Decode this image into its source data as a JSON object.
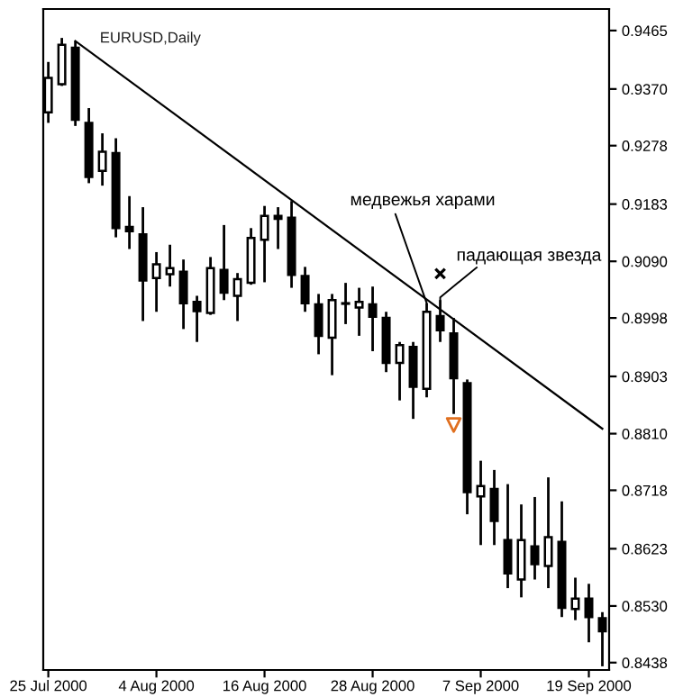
{
  "chart_data": {
    "type": "candlestick",
    "title": "EURUSD,Daily",
    "categories": [
      "25 Jul 2000",
      null,
      null,
      null,
      null,
      null,
      null,
      null,
      "4 Aug 2000",
      null,
      null,
      null,
      null,
      null,
      null,
      null,
      "16 Aug 2000",
      null,
      null,
      null,
      null,
      null,
      null,
      null,
      "28 Aug 2000",
      null,
      null,
      null,
      null,
      null,
      null,
      null,
      "7 Sep 2000",
      null,
      null,
      null,
      null,
      null,
      null,
      null,
      "19 Sep 2000",
      null
    ],
    "ohlc": [
      [
        0.9332,
        0.9414,
        0.9315,
        0.9388
      ],
      [
        0.9378,
        0.9453,
        0.9375,
        0.9442
      ],
      [
        0.9437,
        0.9448,
        0.931,
        0.932
      ],
      [
        0.9315,
        0.9339,
        0.9217,
        0.9227
      ],
      [
        0.9237,
        0.9298,
        0.9213,
        0.9268
      ],
      [
        0.9266,
        0.929,
        0.9129,
        0.9144
      ],
      [
        0.9146,
        0.9196,
        0.911,
        0.9139
      ],
      [
        0.9134,
        0.9178,
        0.8993,
        0.9059
      ],
      [
        0.9063,
        0.9105,
        0.9008,
        0.9085
      ],
      [
        0.9069,
        0.9117,
        0.9049,
        0.9079
      ],
      [
        0.9073,
        0.9093,
        0.898,
        0.9022
      ],
      [
        0.9024,
        0.9034,
        0.8959,
        0.9009
      ],
      [
        0.9006,
        0.9097,
        0.9003,
        0.9079
      ],
      [
        0.9076,
        0.9149,
        0.9027,
        0.9039
      ],
      [
        0.9034,
        0.9071,
        0.8993,
        0.9061
      ],
      [
        0.9055,
        0.9144,
        0.9052,
        0.9128
      ],
      [
        0.9125,
        0.918,
        0.9056,
        0.9164
      ],
      [
        0.9164,
        0.9178,
        0.911,
        0.9159
      ],
      [
        0.9161,
        0.9188,
        0.9047,
        0.9068
      ],
      [
        0.9066,
        0.9081,
        0.9008,
        0.9022
      ],
      [
        0.902,
        0.9037,
        0.8939,
        0.8969
      ],
      [
        0.8966,
        0.9037,
        0.8905,
        0.9027
      ],
      [
        0.9021,
        0.9055,
        0.8988,
        0.9022
      ],
      [
        0.9015,
        0.9047,
        0.8969,
        0.9024
      ],
      [
        0.902,
        0.9049,
        0.8944,
        0.9
      ],
      [
        0.8998,
        0.9008,
        0.891,
        0.8925
      ],
      [
        0.8925,
        0.8959,
        0.8864,
        0.8954
      ],
      [
        0.8951,
        0.8959,
        0.8834,
        0.8886
      ],
      [
        0.8883,
        0.9022,
        0.8869,
        0.9008
      ],
      [
        0.9001,
        0.9027,
        0.8959,
        0.8978
      ],
      [
        0.8973,
        0.8998,
        0.8842,
        0.89
      ],
      [
        0.8892,
        0.8898,
        0.8679,
        0.8715
      ],
      [
        0.8708,
        0.8766,
        0.8629,
        0.8725
      ],
      [
        0.872,
        0.8751,
        0.8629,
        0.8668
      ],
      [
        0.8637,
        0.8728,
        0.8559,
        0.8583
      ],
      [
        0.8573,
        0.8695,
        0.8544,
        0.8637
      ],
      [
        0.8627,
        0.8707,
        0.8573,
        0.8598
      ],
      [
        0.8595,
        0.8739,
        0.8559,
        0.8642
      ],
      [
        0.8634,
        0.87,
        0.8512,
        0.8527
      ],
      [
        0.8525,
        0.8576,
        0.8507,
        0.8542
      ],
      [
        0.8542,
        0.8566,
        0.8471,
        0.8512
      ],
      [
        0.851,
        0.852,
        0.8432,
        0.8489
      ]
    ],
    "series": [
      {
        "type": "line",
        "color": "#000000",
        "values": [
          null,
          null,
          0.9448,
          null,
          null,
          null,
          null,
          null,
          null,
          null,
          null,
          null,
          null,
          null,
          null,
          null,
          null,
          null,
          null,
          null,
          null,
          null,
          null,
          null,
          null,
          null,
          null,
          null,
          null,
          null,
          null,
          null,
          null,
          null,
          null,
          null,
          null,
          null,
          null,
          null,
          null,
          0.8818
        ]
      },
      {
        "type": "scatter",
        "marker": "cross",
        "color": "#000000",
        "values": [
          null,
          null,
          null,
          null,
          null,
          null,
          null,
          null,
          null,
          null,
          null,
          null,
          null,
          null,
          null,
          null,
          null,
          null,
          null,
          null,
          null,
          null,
          null,
          null,
          null,
          null,
          null,
          null,
          null,
          0.907,
          null,
          null,
          null,
          null,
          null,
          null,
          null,
          null,
          null,
          null,
          null,
          null
        ]
      },
      {
        "type": "scatter",
        "marker": "triangle",
        "color": "#e07020",
        "values": [
          null,
          null,
          null,
          null,
          null,
          null,
          null,
          null,
          null,
          null,
          null,
          null,
          null,
          null,
          null,
          null,
          null,
          null,
          null,
          null,
          null,
          null,
          null,
          null,
          null,
          null,
          null,
          null,
          null,
          null,
          0.8824,
          null,
          null,
          null,
          null,
          null,
          null,
          null,
          null,
          null,
          null,
          null
        ]
      }
    ],
    "ylim": [
      0.8426,
      0.95
    ],
    "yticks": [
      {
        "value": 0.9465,
        "label": "0.9465"
      },
      {
        "value": 0.937,
        "label": "0.9370"
      },
      {
        "value": 0.9278,
        "label": "0.9278"
      },
      {
        "value": 0.9183,
        "label": "0.9183"
      },
      {
        "value": 0.909,
        "label": "0.9090"
      },
      {
        "value": 0.8998,
        "label": "0.8998"
      },
      {
        "value": 0.8903,
        "label": "0.8903"
      },
      {
        "value": 0.881,
        "label": "0.8810"
      },
      {
        "value": 0.8718,
        "label": "0.8718"
      },
      {
        "value": 0.8623,
        "label": "0.8623"
      },
      {
        "value": 0.853,
        "label": "0.8530"
      },
      {
        "value": 0.8438,
        "label": "0.8438"
      }
    ],
    "annotations": [
      {
        "text": "медвежья харами",
        "y": 0.9022
      },
      "падающая звезда"
    ],
    "grid": false,
    "legend": false
  }
}
